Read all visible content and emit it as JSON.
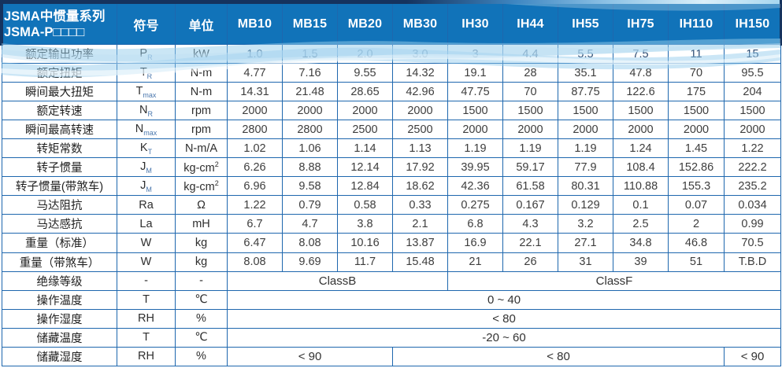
{
  "colors": {
    "header_blue": "#1173b9",
    "border_blue": "#1e67ae",
    "dark_navy": "#15335e",
    "wave_blue": "#8cc8eb"
  },
  "table": {
    "title_line1": "JSMA中惯量系列",
    "title_line2": "JSMA-P□□□□",
    "symbol_header": "符号",
    "unit_header": "单位",
    "models": [
      "MB10",
      "MB15",
      "MB20",
      "MB30",
      "IH30",
      "IH44",
      "IH55",
      "IH75",
      "IH110",
      "IH150"
    ],
    "rows": [
      {
        "label": "额定输出功率",
        "symbol": "P",
        "symbol_sub": "R",
        "unit": "kW",
        "values": [
          "1.0",
          "1.5",
          "2.0",
          "3.0",
          "3",
          "4.4",
          "5.5",
          "7.5",
          "11",
          "15"
        ]
      },
      {
        "label": "额定扭矩",
        "symbol": "T",
        "symbol_sub": "R",
        "unit": "N-m",
        "values": [
          "4.77",
          "7.16",
          "9.55",
          "14.32",
          "19.1",
          "28",
          "35.1",
          "47.8",
          "70",
          "95.5"
        ]
      },
      {
        "label": "瞬间最大扭矩",
        "symbol": "T",
        "symbol_sub": "max",
        "unit": "N-m",
        "values": [
          "14.31",
          "21.48",
          "28.65",
          "42.96",
          "47.75",
          "70",
          "87.75",
          "122.6",
          "175",
          "204"
        ]
      },
      {
        "label": "额定转速",
        "symbol": "N",
        "symbol_sub": "R",
        "unit": "rpm",
        "values": [
          "2000",
          "2000",
          "2000",
          "2000",
          "1500",
          "1500",
          "1500",
          "1500",
          "1500",
          "1500"
        ]
      },
      {
        "label": "瞬间最高转速",
        "symbol": "N",
        "symbol_sub": "max",
        "unit": "rpm",
        "values": [
          "2800",
          "2800",
          "2500",
          "2500",
          "2000",
          "2000",
          "2000",
          "2000",
          "2000",
          "2000"
        ]
      },
      {
        "label": "转矩常数",
        "symbol": "K",
        "symbol_sub": "T",
        "unit": "N-m/A",
        "values": [
          "1.02",
          "1.06",
          "1.14",
          "1.13",
          "1.19",
          "1.19",
          "1.19",
          "1.24",
          "1.45",
          "1.22"
        ]
      },
      {
        "label": "转子惯量",
        "symbol": "J",
        "symbol_sub": "M",
        "unit": "kg-cm",
        "unit_sup": "2",
        "values": [
          "6.26",
          "8.88",
          "12.14",
          "17.92",
          "39.95",
          "59.17",
          "77.9",
          "108.4",
          "152.86",
          "222.2"
        ]
      },
      {
        "label": "转子惯量(带煞车)",
        "symbol": "J",
        "symbol_sub": "M",
        "unit": "kg-cm",
        "unit_sup": "2",
        "values": [
          "6.96",
          "9.58",
          "12.84",
          "18.62",
          "42.36",
          "61.58",
          "80.31",
          "110.88",
          "155.3",
          "235.2"
        ]
      },
      {
        "label": "马达阻抗",
        "symbol": "Ra",
        "unit": "Ω",
        "values": [
          "1.22",
          "0.79",
          "0.58",
          "0.33",
          "0.275",
          "0.167",
          "0.129",
          "0.1",
          "0.07",
          "0.034"
        ]
      },
      {
        "label": "马达感抗",
        "symbol": "La",
        "unit": "mH",
        "values": [
          "6.7",
          "4.7",
          "3.8",
          "2.1",
          "6.8",
          "4.3",
          "3.2",
          "2.5",
          "2",
          "0.99"
        ]
      },
      {
        "label": "重量（标准）",
        "symbol": "W",
        "unit": "kg",
        "values": [
          "6.47",
          "8.08",
          "10.16",
          "13.87",
          "16.9",
          "22.1",
          "27.1",
          "34.8",
          "46.8",
          "70.5"
        ]
      },
      {
        "label": "重量（带煞车）",
        "symbol": "W",
        "unit": "kg",
        "values": [
          "8.08",
          "9.69",
          "11.7",
          "15.48",
          "21",
          "26",
          "31",
          "39",
          "51",
          "T.B.D"
        ]
      },
      {
        "label": "绝缘等级",
        "symbol": "-",
        "unit": "-",
        "spans": [
          {
            "text": "ClassB",
            "cols": 4
          },
          {
            "text": "ClassF",
            "cols": 6
          }
        ]
      },
      {
        "label": "操作温度",
        "symbol": "T",
        "unit": "℃",
        "spans": [
          {
            "text": "0 ~ 40",
            "cols": 10
          }
        ]
      },
      {
        "label": "操作湿度",
        "symbol": "RH",
        "unit": "%",
        "spans": [
          {
            "text": "< 80",
            "cols": 10
          }
        ]
      },
      {
        "label": "储藏温度",
        "symbol": "T",
        "unit": "℃",
        "spans": [
          {
            "text": "-20 ~ 60",
            "cols": 10
          }
        ]
      },
      {
        "label": "储藏湿度",
        "symbol": "RH",
        "unit": "%",
        "spans": [
          {
            "text": "< 90",
            "cols": 3
          },
          {
            "text": "< 80",
            "cols": 6
          },
          {
            "text": "< 90",
            "cols": 1
          }
        ]
      }
    ]
  }
}
